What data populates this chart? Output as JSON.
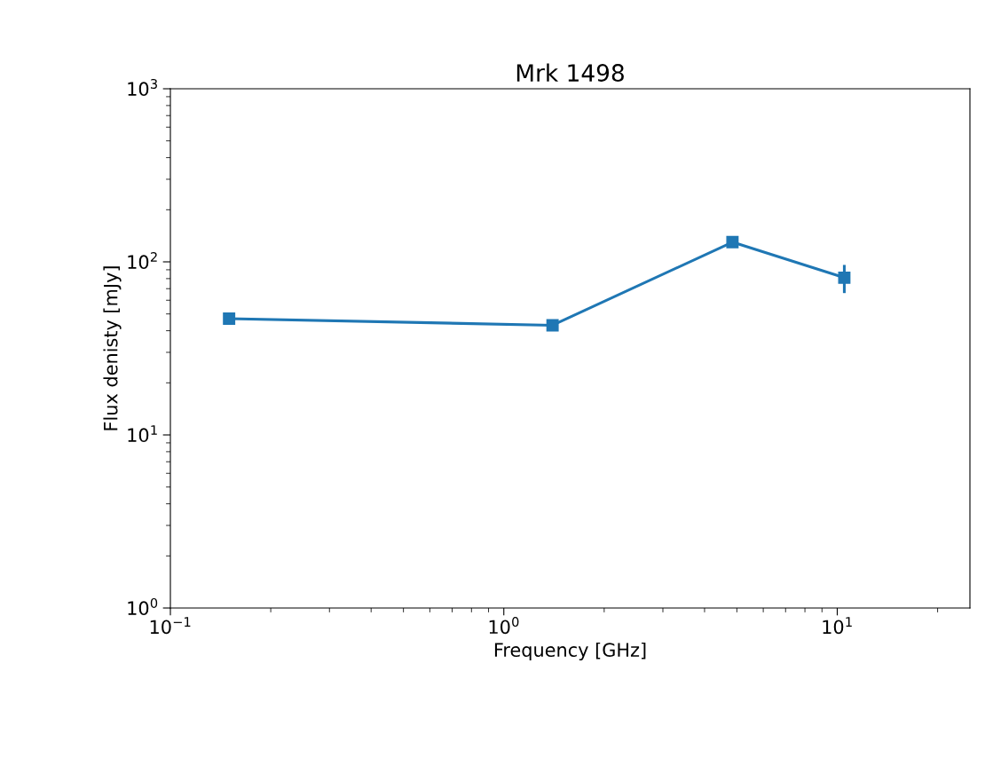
{
  "chart_data": {
    "type": "line",
    "title": "Mrk 1498",
    "xlabel": "Frequency [GHz]",
    "ylabel": "Flux denisty [mJy]",
    "log": "xy",
    "grid": false,
    "marker": "square",
    "line_style": "solid",
    "x": [
      0.15,
      1.4,
      4.85,
      10.5
    ],
    "series": [
      {
        "color": "#1f77b4",
        "values": [
          47,
          43,
          130,
          81
        ],
        "errors": [
          3,
          3,
          8,
          15
        ]
      }
    ],
    "xlim": [
      0.1,
      25
    ],
    "ylim": [
      1,
      1000
    ],
    "xticks": [
      {
        "value": 0.1,
        "label": "10$^{−1}$"
      },
      {
        "value": 1,
        "label": "10$^{0}$"
      },
      {
        "value": 10,
        "label": "10$^{1}$"
      }
    ],
    "yticks": [
      {
        "value": 1,
        "label": "10$^{0}$"
      },
      {
        "value": 10,
        "label": "10$^{1}$"
      },
      {
        "value": 100,
        "label": "10$^{2}$"
      },
      {
        "value": 1000,
        "label": "10$^{3}$"
      }
    ]
  }
}
